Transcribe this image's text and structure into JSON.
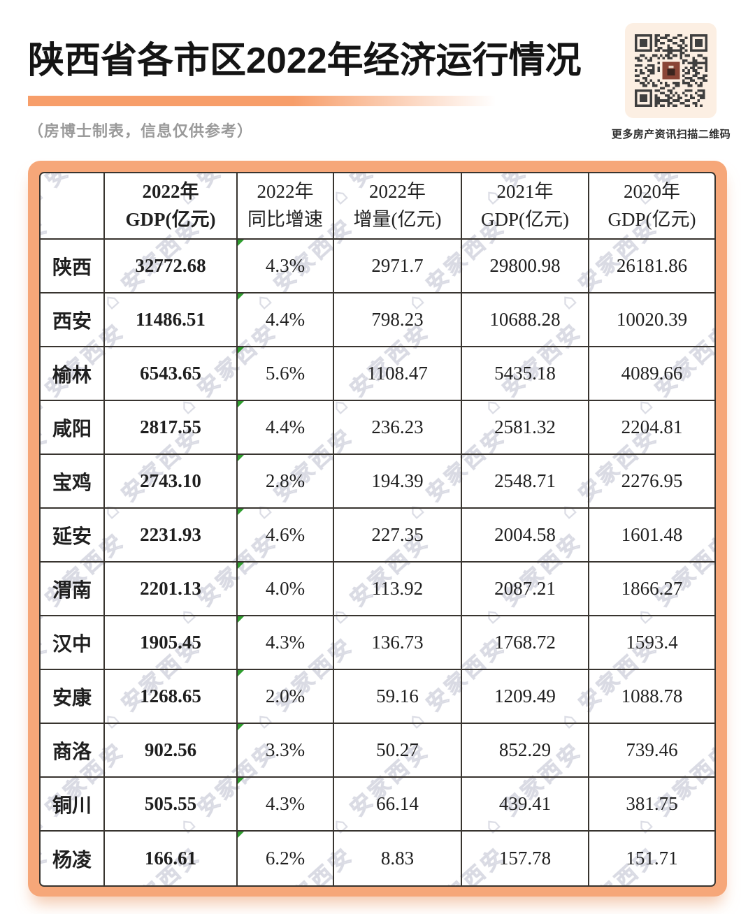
{
  "page": {
    "title": "陕西省各市区2022年经济运行情况",
    "subtitle": "（房博士制表，信息仅供参考）",
    "qr_caption": "更多房产资讯扫描二维码",
    "watermark_text": "安家西安",
    "watermark_icon": "⌂ "
  },
  "colors": {
    "accent_orange": "#F6A779",
    "gradient_bar_orange": "#F79E6A",
    "subtitle_gray": "#9A9A9A",
    "table_line": "#38342F",
    "flag_green": "#2F9E2F",
    "qr_card_bg": "#FCEFE3",
    "qr_module_dark": "#3F3F3F",
    "qr_center_maroon": "#8A4536",
    "title_black": "#141414"
  },
  "chart_data": {
    "type": "table",
    "title": "陕西省各市区2022年经济运行情况",
    "columns": [
      "",
      "2022年\nGDP(亿元)",
      "2022年\n同比增速",
      "2022年\n增量(亿元)",
      "2021年\nGDP(亿元)",
      "2020年\nGDP(亿元)"
    ],
    "rows": [
      [
        "陕西",
        "32772.68",
        "4.3%",
        "2971.7",
        "29800.98",
        "26181.86"
      ],
      [
        "西安",
        "11486.51",
        "4.4%",
        "798.23",
        "10688.28",
        "10020.39"
      ],
      [
        "榆林",
        "6543.65",
        "5.6%",
        "1108.47",
        "5435.18",
        "4089.66"
      ],
      [
        "咸阳",
        "2817.55",
        "4.4%",
        "236.23",
        "2581.32",
        "2204.81"
      ],
      [
        "宝鸡",
        "2743.10",
        "2.8%",
        "194.39",
        "2548.71",
        "2276.95"
      ],
      [
        "延安",
        "2231.93",
        "4.6%",
        "227.35",
        "2004.58",
        "1601.48"
      ],
      [
        "渭南",
        "2201.13",
        "4.0%",
        "113.92",
        "2087.21",
        "1866.27"
      ],
      [
        "汉中",
        "1905.45",
        "4.3%",
        "136.73",
        "1768.72",
        "1593.4"
      ],
      [
        "安康",
        "1268.65",
        "2.0%",
        "59.16",
        "1209.49",
        "1088.78"
      ],
      [
        "商洛",
        "902.56",
        "3.3%",
        "50.27",
        "852.29",
        "739.46"
      ],
      [
        "铜川",
        "505.55",
        "4.3%",
        "66.14",
        "439.41",
        "381.75"
      ],
      [
        "杨凌",
        "166.61",
        "6.2%",
        "8.83",
        "157.78",
        "151.71"
      ]
    ],
    "green_corner_flag_on_growth_column": true,
    "legend_position": "none",
    "grid": true
  }
}
